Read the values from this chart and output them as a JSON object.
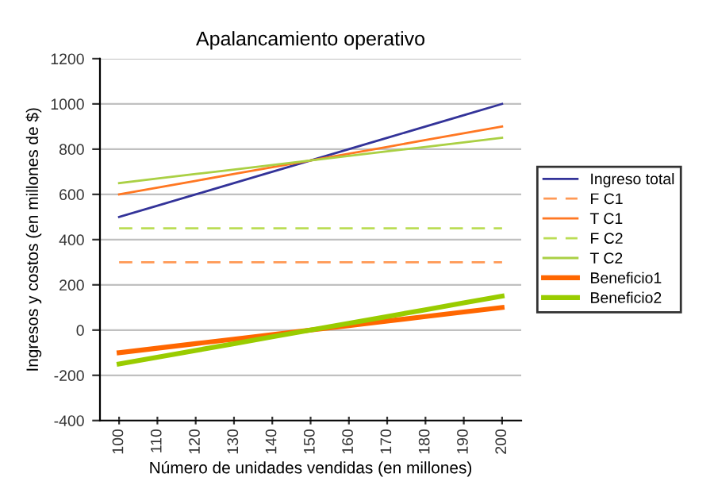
{
  "chart_data": {
    "type": "line",
    "title": "Apalancamiento operativo",
    "xlabel": "Número de unidades vendidas (en millones)",
    "ylabel": "Ingresos y costos (en millones de $)",
    "categories": [
      "100",
      "110",
      "120",
      "130",
      "140",
      "150",
      "160",
      "170",
      "180",
      "190",
      "200"
    ],
    "series": [
      {
        "name": "Ingreso total",
        "color": "#333399",
        "values": [
          500,
          550,
          600,
          650,
          700,
          750,
          800,
          850,
          900,
          950,
          1000
        ]
      },
      {
        "name": "F C1",
        "color": "#ff9955",
        "line_style": "dashed",
        "values": [
          300,
          300,
          300,
          300,
          300,
          300,
          300,
          300,
          300,
          300,
          300
        ]
      },
      {
        "name": "T C1",
        "color": "#ff7722",
        "values": [
          600,
          630,
          660,
          690,
          720,
          750,
          780,
          810,
          840,
          870,
          900
        ]
      },
      {
        "name": "F C2",
        "color": "#bbdd55",
        "line_style": "dashed",
        "values": [
          450,
          450,
          450,
          450,
          450,
          450,
          450,
          450,
          450,
          450,
          450
        ]
      },
      {
        "name": "T C2",
        "color": "#aad044",
        "values": [
          650,
          670,
          690,
          710,
          730,
          750,
          770,
          790,
          810,
          830,
          850
        ]
      },
      {
        "name": "Beneficio1",
        "color": "#ff6600",
        "values": [
          -100,
          -80,
          -60,
          -40,
          -20,
          0,
          20,
          40,
          60,
          80,
          100
        ]
      },
      {
        "name": "Beneficio2",
        "color": "#99cc00",
        "values": [
          -150,
          -120,
          -90,
          -60,
          -30,
          0,
          30,
          60,
          90,
          120,
          150
        ]
      }
    ],
    "ylim": [
      -400,
      1200
    ],
    "yticks": [
      -400,
      -200,
      0,
      200,
      400,
      600,
      800,
      1000,
      1200
    ],
    "grid": "y",
    "legend": "right",
    "marker": "none"
  }
}
